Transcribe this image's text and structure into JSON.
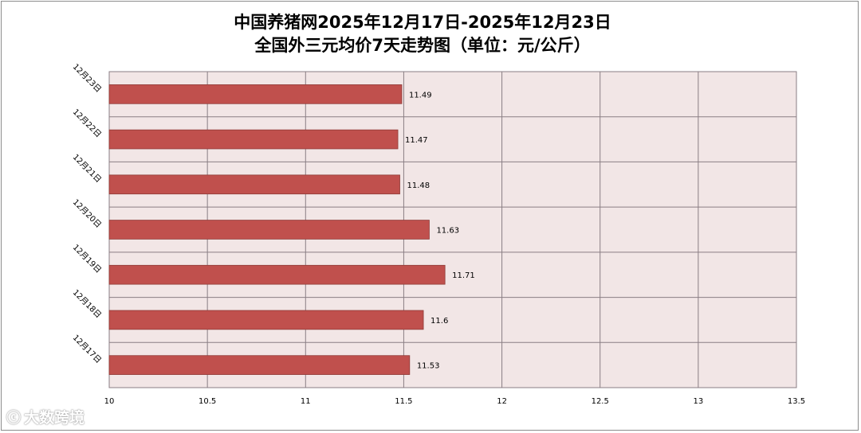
{
  "chart_data": {
    "type": "bar",
    "orientation": "horizontal",
    "title": "中国养猪网2025年12月17日-2025年12月23日",
    "subtitle": "全国外三元均价7天走势图（单位：元/公斤）",
    "categories": [
      "12月23日",
      "12月22日",
      "12月21日",
      "12月20日",
      "12月19日",
      "12月18日",
      "12月17日"
    ],
    "values": [
      11.49,
      11.47,
      11.48,
      11.63,
      11.71,
      11.6,
      11.53
    ],
    "data_labels": [
      "11.49",
      "11.47",
      "11.48",
      "11.63",
      "11.71",
      "11.6",
      "11.53"
    ],
    "x_ticks": [
      "10",
      "10.5",
      "11",
      "11.5",
      "12",
      "12.5",
      "13",
      "13.5"
    ],
    "xlim": [
      10,
      13.5
    ],
    "grid": true,
    "colors": {
      "bar": "#c0504d",
      "bar_edge": "#8e3a37",
      "plot_bg": "#f2e6e6",
      "grid": "#8a7e84"
    }
  },
  "watermark": {
    "text": "大数跨境",
    "icon": "logo-icon"
  }
}
